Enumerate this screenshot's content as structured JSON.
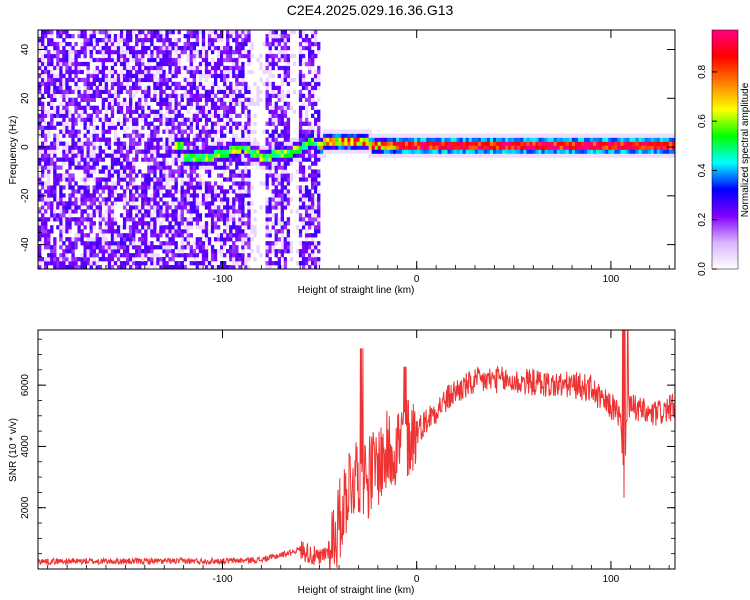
{
  "figure": {
    "title": "C2E4.2025.029.16.36.G13"
  },
  "chart_data": [
    {
      "type": "heatmap",
      "xlabel": "Height of straight line (km)",
      "ylabel": "Frequency (Hz)",
      "xlim": [
        -195,
        133
      ],
      "ylim": [
        -50,
        48
      ],
      "xticks": [
        -100,
        0,
        100
      ],
      "xtick_labels": [
        "-100",
        "0",
        "100"
      ],
      "yticks": [
        -40,
        -20,
        0,
        20,
        40
      ],
      "ytick_labels": [
        "-40",
        "-20",
        "0",
        "20",
        "40"
      ],
      "colorbar": {
        "label": "Normalized spectral amplitude",
        "range": [
          0,
          0.97
        ],
        "ticks": [
          0.0,
          0.2,
          0.4,
          0.6,
          0.8
        ],
        "tick_labels": [
          "0.0",
          "0.2",
          "0.4",
          "0.6",
          "0.8"
        ],
        "colormap": [
          "#ffffff",
          "#d9b3ff",
          "#8000ff",
          "#0000ff",
          "#00ffff",
          "#00ff00",
          "#ffff00",
          "#ff8000",
          "#ff0000",
          "#ff0080"
        ]
      },
      "noise_region_x": [
        -195,
        -50
      ],
      "signal_band": {
        "x": [
          -120,
          -100,
          -90,
          -80,
          -70,
          -60,
          -55,
          -50,
          -40,
          -30,
          -20,
          -10,
          0,
          20,
          50,
          80,
          100,
          105,
          110,
          133
        ],
        "freq": [
          -5,
          -3,
          0,
          -4,
          -3,
          -1,
          2,
          1,
          3,
          2,
          1,
          0,
          0,
          0,
          0,
          0,
          0,
          1,
          0,
          0
        ]
      },
      "grid": false
    },
    {
      "type": "line",
      "xlabel": "Height of straight line (km)",
      "ylabel": "SNR (10 * v/v)",
      "xlim": [
        -195,
        133
      ],
      "ylim": [
        0,
        7800
      ],
      "xticks": [
        -100,
        0,
        100
      ],
      "xtick_labels": [
        "-100",
        "0",
        "100"
      ],
      "yticks": [
        2000,
        4000,
        6000
      ],
      "ytick_labels": [
        "2000",
        "4000",
        "6000"
      ],
      "series": [
        {
          "color": "#ee3333",
          "x": [
            -195,
            -150,
            -100,
            -80,
            -70,
            -60,
            -55,
            -50,
            -45,
            -40,
            -35,
            -30,
            -25,
            -20,
            -15,
            -10,
            -5,
            0,
            10,
            20,
            30,
            40,
            50,
            60,
            70,
            80,
            90,
            95,
            100,
            103,
            105,
            107,
            108,
            110,
            115,
            120,
            125,
            133
          ],
          "y": [
            250,
            250,
            260,
            300,
            450,
            650,
            500,
            300,
            700,
            1500,
            2800,
            3200,
            3000,
            3400,
            3800,
            4100,
            4300,
            4500,
            5200,
            5800,
            6100,
            6200,
            6100,
            6100,
            6000,
            6000,
            5900,
            5500,
            5300,
            5200,
            4800,
            2000,
            5200,
            5300,
            5200,
            5000,
            5100,
            5300
          ]
        }
      ],
      "grid": false
    }
  ]
}
